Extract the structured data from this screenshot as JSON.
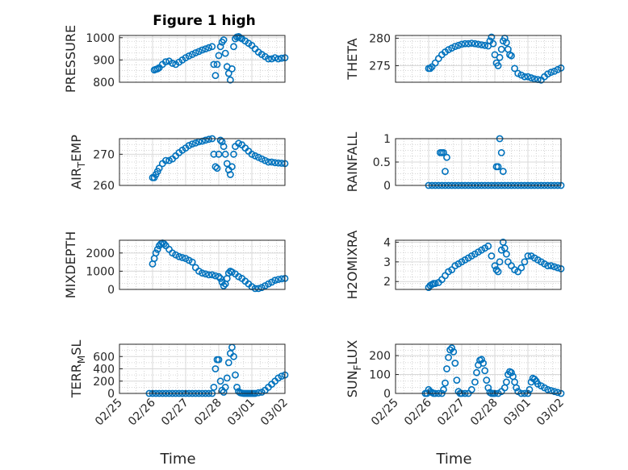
{
  "figure": {
    "title": "Figure 1 high"
  },
  "theme": {
    "marker_color": "#0072BD",
    "axis_color": "#262626",
    "grid_color": "#d9d9d9",
    "minor_grid_color": "#c8c8c8"
  },
  "chart_data": [
    {
      "type": "scatter",
      "ylabel": "PRESSURE",
      "ylim": [
        800,
        1010
      ],
      "yticks": [
        800,
        900,
        1000
      ],
      "ytick_labels": [
        "800",
        "900",
        "1000"
      ],
      "xlim": [
        0,
        5
      ],
      "xticks": [],
      "xlabel": "",
      "grid": true,
      "show_xticks": false,
      "series": [
        {
          "x": [
            1.05,
            1.1,
            1.15,
            1.2,
            1.3,
            1.4,
            1.5,
            1.6,
            1.7,
            1.8,
            1.9,
            2.0,
            2.1,
            2.2,
            2.3,
            2.4,
            2.5,
            2.6,
            2.7,
            2.8,
            2.85,
            2.9,
            2.95,
            3.0,
            3.05,
            3.1,
            3.15,
            3.2,
            3.25,
            3.3,
            3.35,
            3.4,
            3.45,
            3.5,
            3.55,
            3.6,
            3.65,
            3.7,
            3.8,
            3.9,
            4.0,
            4.1,
            4.2,
            4.3,
            4.4,
            4.5,
            4.6,
            4.7,
            4.8,
            4.9,
            5.0
          ],
          "y": [
            855,
            858,
            860,
            865,
            880,
            892,
            895,
            885,
            880,
            890,
            900,
            910,
            918,
            925,
            932,
            938,
            945,
            950,
            955,
            960,
            880,
            830,
            880,
            920,
            960,
            980,
            990,
            930,
            870,
            840,
            810,
            860,
            960,
            995,
            1003,
            1005,
            1000,
            995,
            985,
            975,
            965,
            950,
            935,
            925,
            915,
            905,
            905,
            910,
            905,
            908,
            910
          ]
        }
      ]
    },
    {
      "type": "scatter",
      "ylabel": "THETA",
      "ylim": [
        272,
        280.5
      ],
      "yticks": [
        275,
        280
      ],
      "ytick_labels": [
        "275",
        "280"
      ],
      "xlim": [
        0,
        5
      ],
      "xticks": [],
      "xlabel": "",
      "grid": true,
      "show_xticks": false,
      "series": [
        {
          "x": [
            1.0,
            1.05,
            1.1,
            1.2,
            1.3,
            1.4,
            1.5,
            1.6,
            1.7,
            1.8,
            1.9,
            2.0,
            2.1,
            2.2,
            2.3,
            2.4,
            2.5,
            2.6,
            2.7,
            2.8,
            2.85,
            2.9,
            2.95,
            3.0,
            3.05,
            3.1,
            3.15,
            3.2,
            3.25,
            3.3,
            3.35,
            3.4,
            3.45,
            3.5,
            3.6,
            3.7,
            3.8,
            3.9,
            4.0,
            4.1,
            4.2,
            4.3,
            4.4,
            4.5,
            4.6,
            4.7,
            4.8,
            4.9,
            5.0
          ],
          "y": [
            274.5,
            274.5,
            274.8,
            275.5,
            276.3,
            277,
            277.5,
            277.9,
            278.2,
            278.5,
            278.7,
            278.9,
            279.0,
            279.0,
            279.1,
            279.0,
            278.9,
            278.8,
            278.7,
            278.6,
            279.5,
            280.2,
            279.0,
            277.0,
            275.5,
            275.0,
            276.5,
            278.0,
            279.5,
            280.0,
            279.2,
            278.0,
            277.0,
            276.8,
            274.5,
            273.6,
            273.3,
            273.0,
            273.0,
            272.8,
            272.6,
            272.5,
            272.4,
            273.0,
            273.5,
            273.8,
            274.0,
            274.3,
            274.6
          ]
        }
      ]
    },
    {
      "type": "scatter",
      "ylabel": "AIR_TEMP",
      "ylim": [
        260,
        275
      ],
      "yticks": [
        260,
        270
      ],
      "ytick_labels": [
        "260",
        "270"
      ],
      "xlim": [
        0,
        5
      ],
      "xticks": [],
      "xlabel": "",
      "grid": true,
      "show_xticks": false,
      "series": [
        {
          "x": [
            1.0,
            1.05,
            1.1,
            1.15,
            1.2,
            1.3,
            1.4,
            1.5,
            1.6,
            1.7,
            1.8,
            1.9,
            2.0,
            2.1,
            2.2,
            2.3,
            2.4,
            2.5,
            2.6,
            2.7,
            2.8,
            2.85,
            2.9,
            2.95,
            3.0,
            3.05,
            3.1,
            3.15,
            3.2,
            3.25,
            3.3,
            3.35,
            3.4,
            3.45,
            3.5,
            3.6,
            3.7,
            3.8,
            3.9,
            4.0,
            4.1,
            4.2,
            4.3,
            4.4,
            4.5,
            4.6,
            4.7,
            4.8,
            4.9,
            5.0
          ],
          "y": [
            262.5,
            262.5,
            263.5,
            264.5,
            265.5,
            267,
            268,
            268,
            268.5,
            269.5,
            270.5,
            271.3,
            272.0,
            272.8,
            273.3,
            273.6,
            274.0,
            274.2,
            274.5,
            274.8,
            275.0,
            270,
            266,
            265.5,
            270,
            274.5,
            274,
            272.5,
            270,
            267,
            265,
            263.5,
            266,
            270,
            272.5,
            273.5,
            273,
            272,
            271,
            270,
            269.5,
            269,
            268.5,
            268,
            267.5,
            267.5,
            267.3,
            267.2,
            267.1,
            267.0
          ]
        }
      ]
    },
    {
      "type": "scatter",
      "ylabel": "RAINFALL",
      "ylim": [
        0,
        1
      ],
      "yticks": [
        0,
        0.5,
        1
      ],
      "ytick_labels": [
        "0",
        "0.5",
        "1"
      ],
      "xlim": [
        0,
        5
      ],
      "xticks": [],
      "xlabel": "",
      "grid": true,
      "show_xticks": false,
      "series": [
        {
          "x": [
            1.0,
            1.1,
            1.2,
            1.3,
            1.4,
            1.5,
            1.6,
            1.7,
            1.8,
            1.9,
            2.0,
            2.1,
            2.2,
            2.3,
            2.4,
            2.5,
            2.6,
            2.7,
            2.8,
            2.9,
            3.0,
            3.1,
            3.2,
            3.3,
            3.4,
            3.5,
            3.6,
            3.7,
            3.8,
            3.9,
            4.0,
            4.1,
            4.2,
            4.3,
            4.4,
            4.5,
            4.6,
            4.7,
            4.8,
            4.9,
            5.0,
            1.35,
            1.4,
            1.45,
            1.5,
            1.55,
            3.05,
            3.1,
            3.15,
            3.2,
            3.25
          ],
          "y": [
            0,
            0,
            0,
            0,
            0,
            0,
            0,
            0,
            0,
            0,
            0,
            0,
            0,
            0,
            0,
            0,
            0,
            0,
            0,
            0,
            0,
            0,
            0,
            0,
            0,
            0,
            0,
            0,
            0,
            0,
            0,
            0,
            0,
            0,
            0,
            0,
            0,
            0,
            0,
            0,
            0,
            0.7,
            0.7,
            0.7,
            0.3,
            0.6,
            0.4,
            0.4,
            1.0,
            0.7,
            0.3
          ]
        }
      ]
    },
    {
      "type": "scatter",
      "ylabel": "MIXDEPTH",
      "ylim": [
        0,
        2700
      ],
      "yticks": [
        0,
        1000,
        2000
      ],
      "ytick_labels": [
        "0",
        "1000",
        "2000"
      ],
      "xlim": [
        0,
        5
      ],
      "xticks": [],
      "xlabel": "",
      "grid": true,
      "show_xticks": false,
      "series": [
        {
          "x": [
            1.0,
            1.05,
            1.1,
            1.15,
            1.2,
            1.25,
            1.3,
            1.35,
            1.4,
            1.5,
            1.6,
            1.7,
            1.8,
            1.9,
            2.0,
            2.1,
            2.2,
            2.3,
            2.4,
            2.5,
            2.6,
            2.7,
            2.8,
            2.9,
            3.0,
            3.05,
            3.1,
            3.15,
            3.2,
            3.25,
            3.3,
            3.35,
            3.4,
            3.5,
            3.6,
            3.7,
            3.8,
            3.9,
            4.0,
            4.1,
            4.2,
            4.3,
            4.4,
            4.5,
            4.6,
            4.7,
            4.8,
            4.9,
            5.0
          ],
          "y": [
            1400,
            1700,
            2000,
            2200,
            2400,
            2500,
            2550,
            2500,
            2400,
            2200,
            2000,
            1900,
            1800,
            1750,
            1700,
            1600,
            1500,
            1200,
            1000,
            900,
            850,
            800,
            800,
            750,
            700,
            600,
            400,
            200,
            300,
            600,
            900,
            1000,
            950,
            850,
            700,
            600,
            450,
            300,
            150,
            50,
            50,
            100,
            200,
            300,
            400,
            500,
            550,
            580,
            600
          ]
        }
      ]
    },
    {
      "type": "scatter",
      "ylabel": "H2OMIXRA",
      "ylim": [
        1.6,
        4.1
      ],
      "yticks": [
        2,
        3,
        4
      ],
      "ytick_labels": [
        "2",
        "3",
        "4"
      ],
      "xlim": [
        0,
        5
      ],
      "xticks": [],
      "xlabel": "",
      "grid": true,
      "show_xticks": false,
      "series": [
        {
          "x": [
            1.0,
            1.05,
            1.1,
            1.15,
            1.2,
            1.3,
            1.4,
            1.5,
            1.6,
            1.7,
            1.8,
            1.9,
            2.0,
            2.1,
            2.2,
            2.3,
            2.4,
            2.5,
            2.6,
            2.7,
            2.8,
            2.9,
            3.0,
            3.05,
            3.1,
            3.15,
            3.2,
            3.25,
            3.3,
            3.35,
            3.4,
            3.5,
            3.6,
            3.7,
            3.8,
            3.9,
            4.0,
            4.1,
            4.2,
            4.3,
            4.4,
            4.5,
            4.6,
            4.7,
            4.8,
            4.9,
            5.0
          ],
          "y": [
            1.7,
            1.8,
            1.85,
            1.9,
            1.9,
            1.95,
            2.1,
            2.3,
            2.5,
            2.6,
            2.8,
            2.9,
            3.0,
            3.1,
            3.2,
            3.3,
            3.4,
            3.5,
            3.6,
            3.7,
            3.8,
            3.3,
            2.8,
            2.6,
            2.5,
            3.0,
            3.6,
            4.0,
            3.7,
            3.4,
            3.0,
            2.8,
            2.6,
            2.5,
            2.7,
            3.0,
            3.3,
            3.3,
            3.2,
            3.1,
            3.0,
            2.9,
            2.8,
            2.8,
            2.75,
            2.7,
            2.65
          ]
        }
      ]
    },
    {
      "type": "scatter",
      "ylabel": "TERR_MSL",
      "ylim": [
        0,
        800
      ],
      "yticks": [
        0,
        200,
        400,
        600
      ],
      "ytick_labels": [
        "0",
        "200",
        "400",
        "600"
      ],
      "xlim": [
        0,
        5
      ],
      "xticks": [
        0,
        1,
        2,
        3,
        4,
        5
      ],
      "xtick_labels": [
        "02/25",
        "02/26",
        "02/27",
        "02/28",
        "03/01",
        "03/02"
      ],
      "xlabel": "Time",
      "grid": true,
      "show_xticks": true,
      "series": [
        {
          "x": [
            0.9,
            1.0,
            1.1,
            1.2,
            1.3,
            1.4,
            1.5,
            1.6,
            1.7,
            1.8,
            1.9,
            2.0,
            2.1,
            2.2,
            2.3,
            2.4,
            2.5,
            2.6,
            2.7,
            2.8,
            2.85,
            2.9,
            2.95,
            3.0,
            3.05,
            3.1,
            3.15,
            3.2,
            3.25,
            3.3,
            3.35,
            3.4,
            3.45,
            3.5,
            3.55,
            3.6,
            3.65,
            3.7,
            3.75,
            3.8,
            3.85,
            3.9,
            3.95,
            4.0,
            4.05,
            4.1,
            4.2,
            4.3,
            4.4,
            4.5,
            4.6,
            4.7,
            4.8,
            4.9,
            5.0
          ],
          "y": [
            0,
            0,
            0,
            0,
            0,
            0,
            0,
            0,
            0,
            0,
            0,
            0,
            0,
            0,
            0,
            0,
            0,
            0,
            0,
            0,
            100,
            400,
            550,
            550,
            200,
            50,
            20,
            100,
            250,
            500,
            650,
            750,
            600,
            300,
            100,
            30,
            10,
            5,
            0,
            0,
            0,
            0,
            0,
            0,
            0,
            0,
            10,
            20,
            50,
            100,
            150,
            200,
            250,
            280,
            300
          ]
        }
      ]
    },
    {
      "type": "scatter",
      "ylabel": "SUN_FLUX",
      "ylim": [
        0,
        260
      ],
      "yticks": [
        0,
        100,
        200
      ],
      "ytick_labels": [
        "0",
        "100",
        "200"
      ],
      "xlim": [
        0,
        5
      ],
      "xticks": [
        0,
        1,
        2,
        3,
        4,
        5
      ],
      "xtick_labels": [
        "02/25",
        "02/26",
        "02/27",
        "02/28",
        "03/01",
        "03/02"
      ],
      "xlabel": "Time",
      "grid": true,
      "show_xticks": true,
      "series": [
        {
          "x": [
            0.9,
            0.95,
            1.0,
            1.05,
            1.1,
            1.15,
            1.2,
            1.3,
            1.4,
            1.45,
            1.5,
            1.55,
            1.6,
            1.65,
            1.7,
            1.75,
            1.8,
            1.85,
            1.9,
            1.95,
            2.0,
            2.1,
            2.2,
            2.3,
            2.4,
            2.45,
            2.5,
            2.55,
            2.6,
            2.65,
            2.7,
            2.75,
            2.8,
            2.85,
            2.9,
            2.95,
            3.0,
            3.1,
            3.2,
            3.3,
            3.35,
            3.4,
            3.45,
            3.5,
            3.55,
            3.6,
            3.65,
            3.7,
            3.8,
            3.9,
            4.0,
            4.05,
            4.1,
            4.15,
            4.2,
            4.25,
            4.3,
            4.4,
            4.5,
            4.6,
            4.7,
            4.8,
            4.9,
            5.0
          ],
          "y": [
            0,
            0,
            20,
            10,
            5,
            0,
            0,
            0,
            0,
            20,
            55,
            130,
            190,
            230,
            240,
            220,
            160,
            70,
            10,
            0,
            0,
            0,
            0,
            20,
            60,
            110,
            150,
            175,
            180,
            160,
            120,
            70,
            30,
            5,
            0,
            0,
            0,
            0,
            10,
            30,
            60,
            100,
            115,
            110,
            90,
            60,
            30,
            10,
            0,
            0,
            0,
            20,
            60,
            80,
            75,
            65,
            50,
            40,
            30,
            20,
            15,
            10,
            5,
            0
          ]
        }
      ]
    }
  ]
}
